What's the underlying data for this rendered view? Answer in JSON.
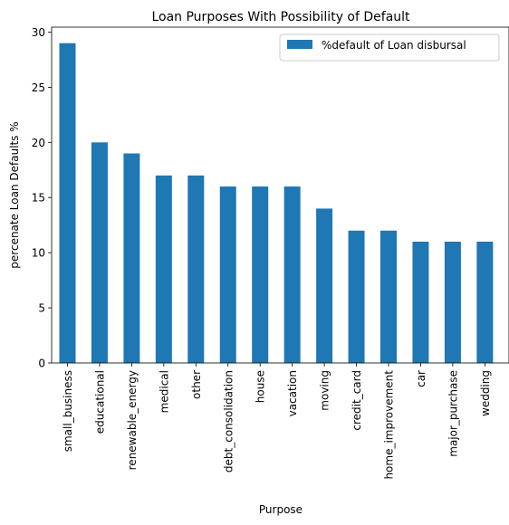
{
  "chart_data": {
    "type": "bar",
    "title": "Loan Purposes With Possibility of Default",
    "xlabel": "Purpose",
    "ylabel": "percenate Loan Defaults %",
    "categories": [
      "small_business",
      "educational",
      "renewable_energy",
      "medical",
      "other",
      "debt_consolidation",
      "house",
      "vacation",
      "moving",
      "credit_card",
      "home_improvement",
      "car",
      "major_purchase",
      "wedding"
    ],
    "series": [
      {
        "name": "%default of Loan disbursal",
        "values": [
          29,
          20,
          19,
          17,
          17,
          16,
          16,
          16,
          14,
          12,
          12,
          11,
          11,
          11
        ]
      }
    ],
    "ylim": [
      0,
      30.45
    ],
    "yticks": [
      0,
      5,
      10,
      15,
      20,
      25,
      30
    ],
    "grid": false,
    "legend": "top-right",
    "colors": {
      "bar": "#1f77b4"
    }
  }
}
